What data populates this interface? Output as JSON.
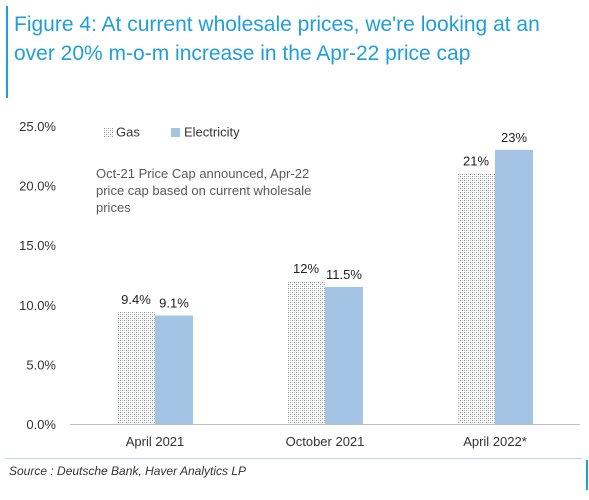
{
  "title": "Figure 4: At current wholesale prices, we're looking at an over 20% m-o-m increase in the Apr-22 price cap",
  "source": "Source : Deutsche Bank, Haver Analytics LP",
  "colors": {
    "accent": "#1f9fd9",
    "gas": "#8a8f99",
    "electricity": "#a4c4e6"
  },
  "chart_data": {
    "type": "bar",
    "categories": [
      "April 2021",
      "October 2021",
      "April 2022*"
    ],
    "series": [
      {
        "name": "Gas",
        "values": [
          9.4,
          12,
          21
        ],
        "labels": [
          "9.4%",
          "12%",
          "21%"
        ],
        "pattern": "hatched"
      },
      {
        "name": "Electricity",
        "values": [
          9.1,
          11.5,
          23
        ],
        "labels": [
          "9.1%",
          "11.5%",
          "23%"
        ]
      }
    ],
    "ylim": [
      0,
      25
    ],
    "yticks": [
      "0.0%",
      "5.0%",
      "10.0%",
      "15.0%",
      "20.0%",
      "25.0%"
    ],
    "legend_position": "top-left",
    "annotation": [
      "Oct-21 Price Cap announced, Apr-22",
      "price cap based on current wholesale",
      "prices"
    ],
    "grid": false
  }
}
